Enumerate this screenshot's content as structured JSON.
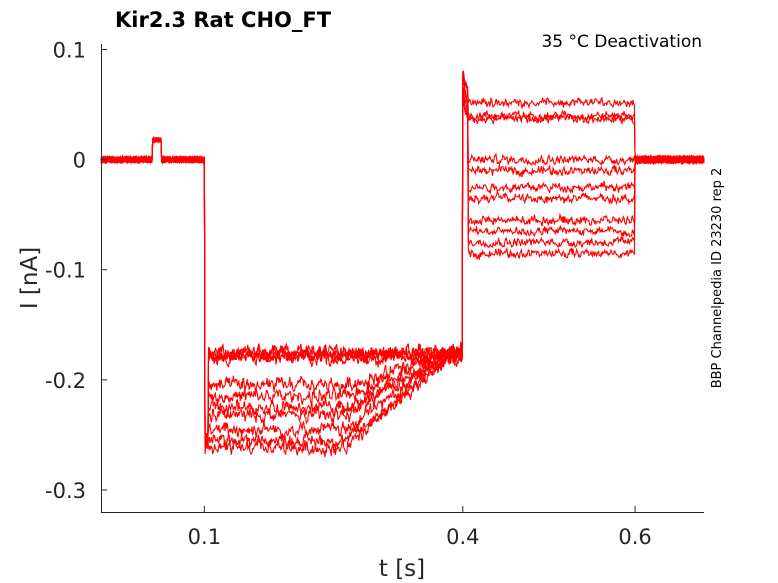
{
  "chart_data": {
    "type": "line",
    "title": "Kir2.3  Rat  CHO_FT",
    "annotation": "35 °C  Deactivation",
    "side_label": "BBP Channelpedia ID 23230 rep 2",
    "xlabel": "t [s]",
    "ylabel": "I [nA]",
    "xlim": [
      -0.02,
      0.68
    ],
    "ylim": [
      -0.32,
      0.105
    ],
    "xticks": [
      0.1,
      0.4,
      0.6
    ],
    "xtick_labels": [
      "0.1",
      "0.4",
      "0.6"
    ],
    "yticks": [
      0.1,
      0,
      -0.1,
      -0.2,
      -0.3
    ],
    "ytick_labels": [
      "0.1",
      "0",
      "-0.1",
      "-0.2",
      "-0.3"
    ],
    "grid": false,
    "line_color": "#ff0000",
    "protocol": {
      "hold_start": -0.02,
      "step1_start": 0.1,
      "step2_start": 0.4,
      "step2_end": 0.6,
      "end": 0.68,
      "holding_current": 0.0,
      "artifact": {
        "t_start": 0.04,
        "t_end": 0.05,
        "value": 0.018
      }
    },
    "series": [
      {
        "step1_level": -0.175,
        "step1_dip": -0.175,
        "step2_level": 0.052
      },
      {
        "step1_level": -0.178,
        "step1_dip": -0.178,
        "step2_level": 0.04
      },
      {
        "step1_level": -0.176,
        "step1_dip": -0.176,
        "step2_level": 0.037
      },
      {
        "step1_level": -0.18,
        "step1_dip": -0.18,
        "step2_level": 0.0
      },
      {
        "step1_level": -0.177,
        "step1_dip": -0.205,
        "step2_level": -0.01
      },
      {
        "step1_level": -0.174,
        "step1_dip": -0.215,
        "step2_level": -0.025
      },
      {
        "step1_level": -0.179,
        "step1_dip": -0.225,
        "step2_level": -0.035
      },
      {
        "step1_level": -0.176,
        "step1_dip": -0.232,
        "step2_level": -0.055
      },
      {
        "step1_level": -0.175,
        "step1_dip": -0.245,
        "step2_level": -0.065
      },
      {
        "step1_level": -0.181,
        "step1_dip": -0.255,
        "step2_level": -0.075
      },
      {
        "step1_level": -0.178,
        "step1_dip": -0.262,
        "step2_level": -0.085
      }
    ]
  }
}
